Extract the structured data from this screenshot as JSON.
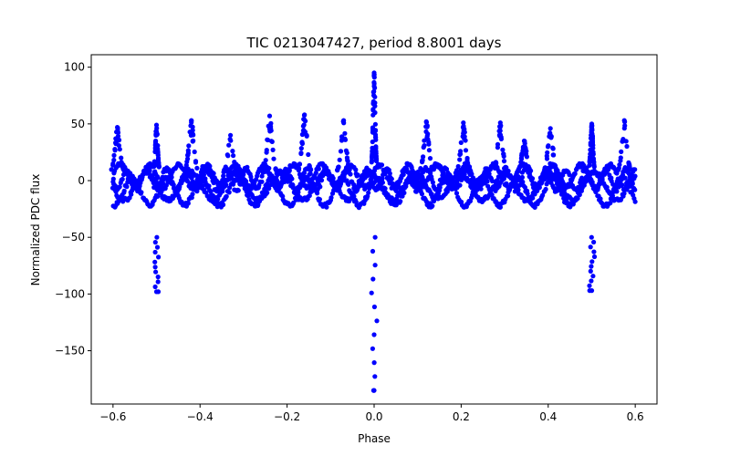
{
  "chart_data": {
    "type": "scatter",
    "title": "TIC 0213047427, period 8.8001 days",
    "xlabel": "Phase",
    "ylabel": "Normalized PDC flux",
    "xlim": [
      -0.65,
      0.65
    ],
    "ylim": [
      -197,
      111
    ],
    "xticks": [
      -0.6,
      -0.4,
      -0.2,
      0.0,
      0.2,
      0.4,
      0.6
    ],
    "xtick_labels": [
      "−0.6",
      "−0.4",
      "−0.2",
      "0.0",
      "0.2",
      "0.4",
      "0.6"
    ],
    "yticks": [
      100,
      50,
      0,
      -50,
      -100,
      -150
    ],
    "ytick_labels": [
      "100",
      "50",
      "0",
      "−50",
      "−100",
      "−150"
    ],
    "grid": false,
    "marker_color": "#0000ff",
    "x_range": [
      -0.6,
      0.6
    ],
    "baseline_envelope": [
      -28,
      15
    ],
    "oscillation_peaks": [
      {
        "phase": -0.59,
        "flux": 47
      },
      {
        "phase": -0.42,
        "flux": 53
      },
      {
        "phase": -0.33,
        "flux": 40
      },
      {
        "phase": -0.24,
        "flux": 57
      },
      {
        "phase": -0.16,
        "flux": 58
      },
      {
        "phase": -0.07,
        "flux": 53
      },
      {
        "phase": 0.12,
        "flux": 52
      },
      {
        "phase": 0.205,
        "flux": 51
      },
      {
        "phase": 0.29,
        "flux": 51
      },
      {
        "phase": 0.345,
        "flux": 35
      },
      {
        "phase": 0.405,
        "flux": 46
      },
      {
        "phase": 0.575,
        "flux": 53
      }
    ],
    "eclipses": [
      {
        "phase": -0.5,
        "flux_max": 49,
        "flux_min": -98
      },
      {
        "phase": 0.0,
        "flux_max": 95,
        "flux_min": -185
      },
      {
        "phase": 0.5,
        "flux_max": 50,
        "flux_min": -97
      }
    ]
  }
}
